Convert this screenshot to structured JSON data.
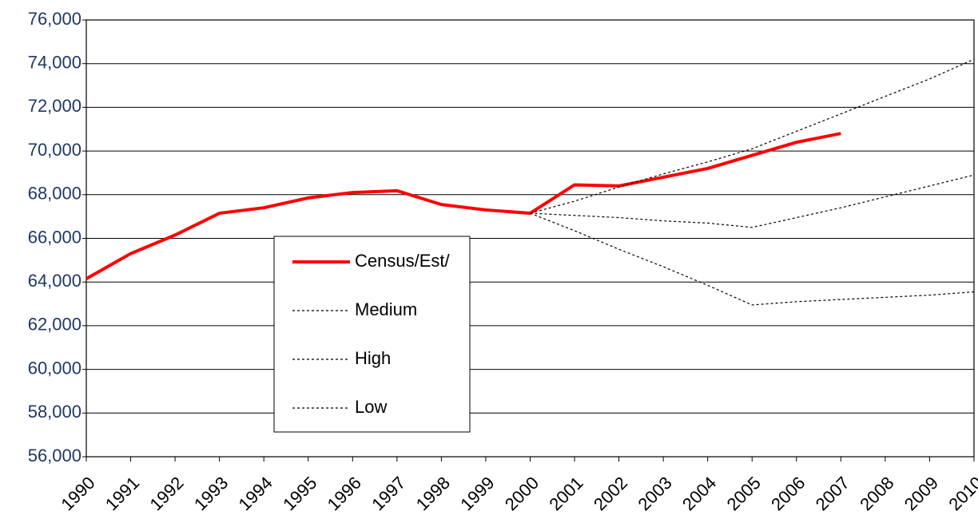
{
  "chart_data": {
    "type": "line",
    "categories": [
      "1990",
      "1991",
      "1992",
      "1993",
      "1994",
      "1995",
      "1996",
      "1997",
      "1998",
      "1999",
      "2000",
      "2001",
      "2002",
      "2003",
      "2004",
      "2005",
      "2006",
      "2007",
      "2008",
      "2009",
      "2010"
    ],
    "series": [
      {
        "name": "Census/Est/",
        "color": "#ff0000",
        "line_style": "solid",
        "linewidth": 4,
        "values": [
          64150,
          65300,
          66150,
          67150,
          67400,
          67850,
          68100,
          68180,
          67550,
          67300,
          67150,
          68450,
          68400,
          68800,
          69200,
          69800,
          70400,
          70800,
          null,
          null,
          null
        ]
      },
      {
        "name": "Medium",
        "color": "#000000",
        "line_style": "dotted",
        "linewidth": 1.2,
        "values": [
          null,
          null,
          null,
          null,
          null,
          null,
          null,
          null,
          null,
          null,
          67150,
          67050,
          66950,
          66800,
          66700,
          66500,
          66950,
          67400,
          67900,
          68400,
          68900
        ]
      },
      {
        "name": "High",
        "color": "#000000",
        "line_style": "dotted",
        "linewidth": 1.2,
        "values": [
          null,
          null,
          null,
          null,
          null,
          null,
          null,
          null,
          null,
          null,
          67150,
          67700,
          68350,
          68950,
          69500,
          70100,
          70900,
          71700,
          72500,
          73300,
          74200
        ]
      },
      {
        "name": "Low",
        "color": "#000000",
        "line_style": "dotted",
        "linewidth": 1.2,
        "values": [
          null,
          null,
          null,
          null,
          null,
          null,
          null,
          null,
          null,
          null,
          67150,
          66350,
          65500,
          64700,
          63850,
          62950,
          63100,
          63200,
          63300,
          63400,
          63550
        ]
      }
    ],
    "ylim": [
      56000,
      76000
    ],
    "yticks": [
      {
        "value": 56000,
        "label": "56,000"
      },
      {
        "value": 58000,
        "label": "58,000"
      },
      {
        "value": 60000,
        "label": "60,000"
      },
      {
        "value": 62000,
        "label": "62,000"
      },
      {
        "value": 64000,
        "label": "64,000"
      },
      {
        "value": 66000,
        "label": "66,000"
      },
      {
        "value": 68000,
        "label": "68,000"
      },
      {
        "value": 70000,
        "label": "70,000"
      },
      {
        "value": 72000,
        "label": "72,000"
      },
      {
        "value": 74000,
        "label": "74,000"
      },
      {
        "value": 76000,
        "label": "76,000"
      }
    ],
    "grid": true
  }
}
